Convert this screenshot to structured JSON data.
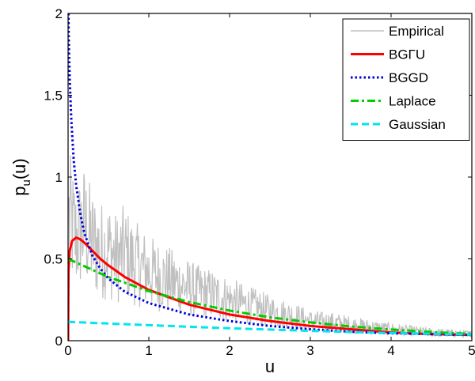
{
  "chart_data": {
    "type": "line",
    "title": "",
    "xlabel": "u",
    "ylabel": {
      "main": "p",
      "sub": "u",
      "rest": "(u)"
    },
    "xlim": [
      0,
      5
    ],
    "ylim": [
      0,
      2
    ],
    "xticks": [
      0,
      1,
      2,
      3,
      4,
      5
    ],
    "xtick_labels": [
      "0",
      "1",
      "2",
      "3",
      "4",
      "5"
    ],
    "yticks": [
      0,
      0.5,
      1,
      1.5,
      2
    ],
    "ytick_labels": [
      "0",
      "0.5",
      "1",
      "1.5",
      "2"
    ],
    "grid": false,
    "legend_position": "top-right",
    "series": [
      {
        "name": "Empirical",
        "color": "#c0c0c0",
        "style": "solid",
        "x": [
          0.02,
          0.1,
          0.2,
          0.3,
          0.4,
          0.5,
          0.6,
          0.7,
          0.8,
          0.9,
          1.0,
          1.2,
          1.4,
          1.6,
          1.8,
          2.0,
          2.2,
          2.5,
          2.8,
          3.0,
          3.3,
          3.6,
          4.0,
          4.5,
          5.0
        ],
        "y": [
          0.75,
          0.62,
          0.7,
          0.6,
          0.55,
          0.56,
          0.5,
          0.54,
          0.48,
          0.45,
          0.42,
          0.38,
          0.34,
          0.3,
          0.28,
          0.25,
          0.22,
          0.18,
          0.15,
          0.12,
          0.11,
          0.09,
          0.07,
          0.05,
          0.04
        ]
      },
      {
        "name": "BGΓU",
        "color": "#ff0000",
        "style": "solid",
        "x": [
          0,
          0.005,
          0.02,
          0.05,
          0.1,
          0.15,
          0.2,
          0.3,
          0.4,
          0.5,
          0.7,
          1.0,
          1.5,
          2.0,
          2.5,
          3.0,
          3.5,
          4.0,
          4.5,
          5.0
        ],
        "y": [
          0,
          0.42,
          0.55,
          0.61,
          0.63,
          0.62,
          0.6,
          0.55,
          0.5,
          0.46,
          0.39,
          0.31,
          0.22,
          0.16,
          0.12,
          0.09,
          0.07,
          0.05,
          0.04,
          0.035
        ]
      },
      {
        "name": "BGGD",
        "color": "#0000dd",
        "style": "dotted",
        "x": [
          0.005,
          0.01,
          0.02,
          0.04,
          0.07,
          0.1,
          0.15,
          0.2,
          0.3,
          0.4,
          0.5,
          0.7,
          1.0,
          1.5,
          2.0,
          2.5,
          3.0,
          3.5,
          4.0,
          4.5,
          5.0
        ],
        "y": [
          2.0,
          1.8,
          1.6,
          1.35,
          1.1,
          0.95,
          0.78,
          0.66,
          0.52,
          0.44,
          0.38,
          0.3,
          0.23,
          0.16,
          0.12,
          0.09,
          0.07,
          0.055,
          0.045,
          0.04,
          0.035
        ]
      },
      {
        "name": "Laplace",
        "color": "#00cc00",
        "style": "dashdot",
        "x": [
          0,
          0.5,
          1.0,
          1.5,
          2.0,
          2.5,
          3.0,
          3.5,
          4.0,
          4.5,
          5.0
        ],
        "y": [
          0.5,
          0.389,
          0.303,
          0.236,
          0.184,
          0.143,
          0.112,
          0.087,
          0.068,
          0.053,
          0.041
        ]
      },
      {
        "name": "Gaussian",
        "color": "#00e5ee",
        "style": "dashed",
        "x": [
          0,
          0.5,
          1.0,
          1.5,
          2.0,
          2.5,
          3.0,
          3.5,
          4.0,
          4.5,
          5.0
        ],
        "y": [
          0.115,
          0.105,
          0.095,
          0.085,
          0.076,
          0.068,
          0.06,
          0.053,
          0.047,
          0.042,
          0.037
        ]
      }
    ]
  }
}
